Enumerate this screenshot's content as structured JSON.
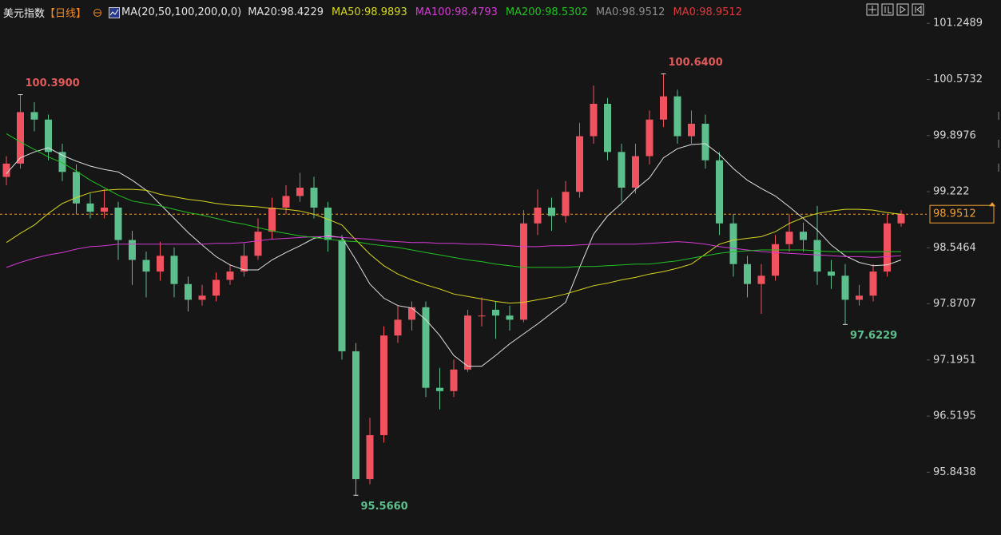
{
  "chart_data": {
    "type": "candlestick",
    "title": "美元指数",
    "period": "【日线】",
    "indicator": "MA(20,50,100,200,0,0)",
    "up_color": "#f0525f",
    "down_color": "#5cbf8c",
    "ylim": [
      95.28,
      101.53
    ],
    "yticks": [
      101.2489,
      100.5732,
      99.8976,
      99.222,
      98.5464,
      97.8707,
      97.1951,
      96.5195,
      95.8438
    ],
    "last_price": 98.9512,
    "last_price_color": "#f0a030",
    "candles": [
      [
        99.4,
        99.65,
        99.3,
        99.56
      ],
      [
        99.56,
        100.39,
        99.5,
        100.18
      ],
      [
        100.18,
        100.3,
        99.95,
        100.09
      ],
      [
        100.09,
        100.15,
        99.6,
        99.7
      ],
      [
        99.7,
        99.8,
        99.35,
        99.46
      ],
      [
        99.46,
        99.55,
        98.95,
        99.08
      ],
      [
        99.08,
        99.2,
        98.9,
        98.98
      ],
      [
        98.98,
        99.25,
        98.9,
        99.03
      ],
      [
        99.03,
        99.1,
        98.4,
        98.64
      ],
      [
        98.64,
        98.75,
        98.1,
        98.4
      ],
      [
        98.4,
        98.5,
        97.95,
        98.26
      ],
      [
        98.26,
        98.62,
        98.15,
        98.45
      ],
      [
        98.45,
        98.55,
        97.95,
        98.11
      ],
      [
        98.11,
        98.2,
        97.78,
        97.92
      ],
      [
        97.92,
        98.1,
        97.85,
        97.97
      ],
      [
        97.97,
        98.25,
        97.9,
        98.16
      ],
      [
        98.16,
        98.35,
        98.1,
        98.26
      ],
      [
        98.26,
        98.6,
        98.2,
        98.45
      ],
      [
        98.45,
        98.9,
        98.4,
        98.74
      ],
      [
        98.74,
        99.15,
        98.65,
        99.03
      ],
      [
        99.03,
        99.3,
        98.95,
        99.17
      ],
      [
        99.17,
        99.45,
        99.1,
        99.27
      ],
      [
        99.27,
        99.4,
        98.9,
        99.03
      ],
      [
        99.03,
        99.1,
        98.5,
        98.64
      ],
      [
        98.64,
        98.7,
        97.2,
        97.3
      ],
      [
        97.3,
        97.4,
        95.566,
        95.76
      ],
      [
        95.76,
        96.5,
        95.7,
        96.29
      ],
      [
        96.29,
        97.6,
        96.2,
        97.49
      ],
      [
        97.49,
        97.85,
        97.4,
        97.68
      ],
      [
        97.68,
        97.9,
        97.55,
        97.83
      ],
      [
        97.83,
        97.9,
        96.75,
        96.86
      ],
      [
        96.86,
        97.1,
        96.6,
        96.82
      ],
      [
        96.82,
        97.2,
        96.75,
        97.08
      ],
      [
        97.08,
        97.8,
        97.05,
        97.73
      ],
      [
        97.73,
        97.95,
        97.6,
        97.73
      ],
      [
        97.8,
        97.9,
        97.45,
        97.73
      ],
      [
        97.73,
        97.85,
        97.55,
        97.68
      ],
      [
        97.68,
        99.0,
        97.65,
        98.84
      ],
      [
        98.84,
        99.25,
        98.7,
        99.03
      ],
      [
        99.03,
        99.15,
        98.75,
        98.93
      ],
      [
        98.93,
        99.35,
        98.85,
        99.22
      ],
      [
        99.22,
        100.05,
        99.15,
        99.89
      ],
      [
        99.89,
        100.5,
        99.8,
        100.28
      ],
      [
        100.28,
        100.35,
        99.6,
        99.7
      ],
      [
        99.7,
        99.8,
        99.1,
        99.27
      ],
      [
        99.27,
        99.8,
        99.2,
        99.65
      ],
      [
        99.65,
        100.2,
        99.55,
        100.09
      ],
      [
        100.09,
        100.64,
        100.0,
        100.37
      ],
      [
        100.37,
        100.45,
        99.8,
        99.89
      ],
      [
        99.89,
        100.2,
        99.8,
        100.04
      ],
      [
        100.04,
        100.15,
        99.5,
        99.6
      ],
      [
        99.6,
        99.7,
        98.7,
        98.84
      ],
      [
        98.84,
        98.95,
        98.2,
        98.35
      ],
      [
        98.35,
        98.45,
        97.95,
        98.11
      ],
      [
        98.11,
        98.35,
        97.75,
        98.21
      ],
      [
        98.21,
        98.7,
        98.15,
        98.59
      ],
      [
        98.59,
        98.95,
        98.5,
        98.74
      ],
      [
        98.74,
        98.85,
        98.5,
        98.64
      ],
      [
        98.64,
        99.05,
        98.1,
        98.26
      ],
      [
        98.26,
        98.4,
        98.05,
        98.21
      ],
      [
        98.21,
        98.35,
        97.6229,
        97.92
      ],
      [
        97.92,
        98.1,
        97.85,
        97.97
      ],
      [
        97.97,
        98.35,
        97.9,
        98.26
      ],
      [
        98.26,
        98.95,
        98.2,
        98.84
      ],
      [
        98.84,
        99.0,
        98.8,
        98.95
      ]
    ],
    "series": [
      {
        "name": "MA20:98.4229",
        "color": "#e0e0e0",
        "values": [
          99.44,
          99.63,
          99.7,
          99.75,
          99.66,
          99.59,
          99.53,
          99.49,
          99.46,
          99.36,
          99.24,
          99.07,
          98.9,
          98.73,
          98.58,
          98.44,
          98.34,
          98.28,
          98.28,
          98.4,
          98.49,
          98.57,
          98.66,
          98.69,
          98.67,
          98.4,
          98.11,
          97.94,
          97.85,
          97.82,
          97.68,
          97.49,
          97.25,
          97.12,
          97.12,
          97.25,
          97.39,
          97.51,
          97.63,
          97.76,
          97.89,
          98.31,
          98.71,
          98.93,
          99.08,
          99.25,
          99.39,
          99.63,
          99.74,
          99.79,
          99.8,
          99.67,
          99.5,
          99.36,
          99.26,
          99.17,
          99.04,
          98.9,
          98.76,
          98.58,
          98.45,
          98.37,
          98.33,
          98.34,
          98.4
        ]
      },
      {
        "name": "MA50:98.9893",
        "color": "#d6d61e",
        "values": [
          98.61,
          98.72,
          98.82,
          98.96,
          99.08,
          99.15,
          99.21,
          99.24,
          99.25,
          99.25,
          99.24,
          99.19,
          99.16,
          99.13,
          99.11,
          99.08,
          99.06,
          99.05,
          99.04,
          99.02,
          99.01,
          98.99,
          98.95,
          98.89,
          98.82,
          98.64,
          98.47,
          98.33,
          98.23,
          98.16,
          98.1,
          98.05,
          97.99,
          97.96,
          97.93,
          97.9,
          97.88,
          97.89,
          97.92,
          97.95,
          97.99,
          98.04,
          98.09,
          98.12,
          98.16,
          98.19,
          98.23,
          98.26,
          98.3,
          98.35,
          98.47,
          98.59,
          98.64,
          98.66,
          98.68,
          98.74,
          98.84,
          98.91,
          98.96,
          98.99,
          99.01,
          99.01,
          99.0,
          98.97,
          98.95
        ]
      },
      {
        "name": "MA100:98.4793",
        "color": "#d43ad4",
        "values": [
          98.31,
          98.37,
          98.42,
          98.46,
          98.49,
          98.53,
          98.56,
          98.57,
          98.59,
          98.59,
          98.59,
          98.59,
          98.59,
          98.59,
          98.59,
          98.6,
          98.6,
          98.61,
          98.63,
          98.65,
          98.66,
          98.67,
          98.68,
          98.68,
          98.67,
          98.66,
          98.65,
          98.63,
          98.62,
          98.61,
          98.61,
          98.6,
          98.6,
          98.59,
          98.59,
          98.58,
          98.57,
          98.56,
          98.56,
          98.57,
          98.57,
          98.58,
          98.59,
          98.59,
          98.59,
          98.59,
          98.6,
          98.61,
          98.62,
          98.61,
          98.59,
          98.56,
          98.54,
          98.52,
          98.5,
          98.49,
          98.48,
          98.47,
          98.46,
          98.45,
          98.44,
          98.44,
          98.43,
          98.44,
          98.45
        ]
      },
      {
        "name": "MA200:98.5302",
        "color": "#22c022",
        "values": [
          99.92,
          99.82,
          99.73,
          99.64,
          99.57,
          99.47,
          99.36,
          99.27,
          99.18,
          99.11,
          99.08,
          99.05,
          99.01,
          98.97,
          98.94,
          98.9,
          98.86,
          98.83,
          98.79,
          98.75,
          98.72,
          98.69,
          98.67,
          98.65,
          98.63,
          98.62,
          98.59,
          98.57,
          98.55,
          98.52,
          98.49,
          98.46,
          98.43,
          98.4,
          98.38,
          98.35,
          98.33,
          98.31,
          98.31,
          98.31,
          98.31,
          98.32,
          98.32,
          98.33,
          98.34,
          98.35,
          98.35,
          98.37,
          98.39,
          98.42,
          98.45,
          98.48,
          98.5,
          98.51,
          98.52,
          98.52,
          98.52,
          98.52,
          98.51,
          98.5,
          98.5,
          98.5,
          98.5,
          98.5,
          98.5
        ]
      }
    ],
    "extra_legend": [
      {
        "label": "MA0:98.9512",
        "color": "#8c8c8c"
      },
      {
        "label": "MA0:98.9512",
        "color": "#e0383b"
      }
    ],
    "annotations": [
      {
        "label": "100.3900",
        "value": 100.39,
        "kind": "high",
        "color": "#e05a5a"
      },
      {
        "label": "100.6400",
        "value": 100.64,
        "kind": "high",
        "color": "#e05a5a"
      },
      {
        "label": "95.5660",
        "value": 95.566,
        "kind": "low",
        "color": "#5cbf8c"
      },
      {
        "label": "97.6229",
        "value": 97.6229,
        "kind": "low",
        "color": "#5cbf8c"
      }
    ]
  }
}
